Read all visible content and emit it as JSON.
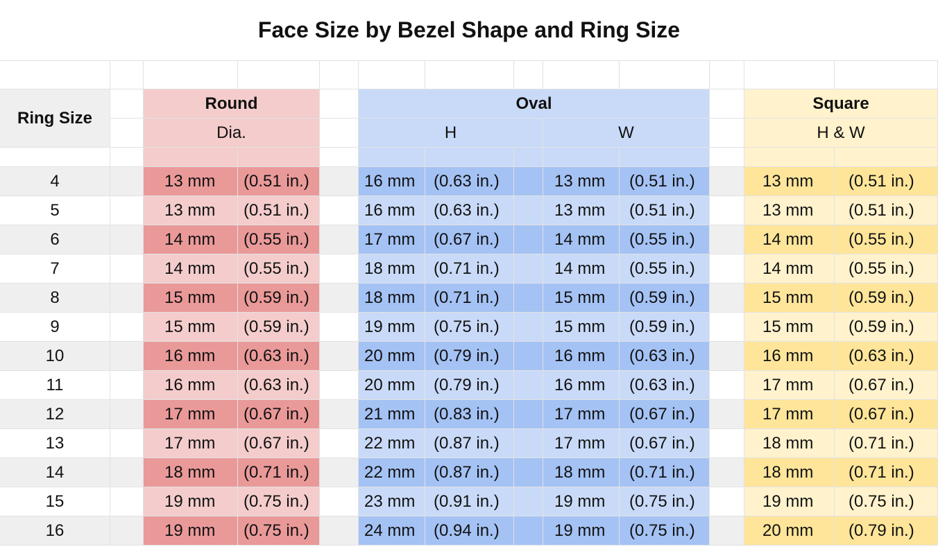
{
  "title": "Face Size by Bezel Shape and Ring Size",
  "headers": {
    "ring_size": "Ring Size",
    "round": "Round",
    "round_sub": "Dia.",
    "oval": "Oval",
    "oval_h": "H",
    "oval_w": "W",
    "square": "Square",
    "square_sub": "H & W"
  },
  "colors": {
    "round_header": "#f4cccc",
    "round_dark": "#ea9999",
    "round_light": "#f4cccc",
    "oval_header": "#c9daf8",
    "oval_dark": "#a4c2f4",
    "oval_light": "#c9daf8",
    "square_header": "#fff2cc",
    "square_dark": "#ffe599",
    "square_light": "#fff2cc",
    "ring_header": "#efefef",
    "stripe": "#efefef"
  },
  "rows": [
    {
      "ring": "4",
      "round_mm": "13 mm",
      "round_in": "(0.51 in.)",
      "oval_h_mm": "16 mm",
      "oval_h_in": "(0.63 in.)",
      "oval_w_mm": "13 mm",
      "oval_w_in": "(0.51 in.)",
      "sq_mm": "13 mm",
      "sq_in": "(0.51 in.)"
    },
    {
      "ring": "5",
      "round_mm": "13 mm",
      "round_in": "(0.51 in.)",
      "oval_h_mm": "16 mm",
      "oval_h_in": "(0.63 in.)",
      "oval_w_mm": "13 mm",
      "oval_w_in": "(0.51 in.)",
      "sq_mm": "13 mm",
      "sq_in": "(0.51 in.)"
    },
    {
      "ring": "6",
      "round_mm": "14 mm",
      "round_in": "(0.55 in.)",
      "oval_h_mm": "17 mm",
      "oval_h_in": "(0.67 in.)",
      "oval_w_mm": "14 mm",
      "oval_w_in": "(0.55 in.)",
      "sq_mm": "14 mm",
      "sq_in": "(0.55 in.)"
    },
    {
      "ring": "7",
      "round_mm": "14 mm",
      "round_in": "(0.55 in.)",
      "oval_h_mm": "18 mm",
      "oval_h_in": "(0.71 in.)",
      "oval_w_mm": "14 mm",
      "oval_w_in": "(0.55 in.)",
      "sq_mm": "14 mm",
      "sq_in": "(0.55 in.)"
    },
    {
      "ring": "8",
      "round_mm": "15 mm",
      "round_in": "(0.59 in.)",
      "oval_h_mm": "18 mm",
      "oval_h_in": "(0.71 in.)",
      "oval_w_mm": "15 mm",
      "oval_w_in": "(0.59 in.)",
      "sq_mm": "15 mm",
      "sq_in": "(0.59 in.)"
    },
    {
      "ring": "9",
      "round_mm": "15 mm",
      "round_in": "(0.59 in.)",
      "oval_h_mm": "19 mm",
      "oval_h_in": "(0.75 in.)",
      "oval_w_mm": "15 mm",
      "oval_w_in": "(0.59 in.)",
      "sq_mm": "15 mm",
      "sq_in": "(0.59 in.)"
    },
    {
      "ring": "10",
      "round_mm": "16 mm",
      "round_in": "(0.63 in.)",
      "oval_h_mm": "20 mm",
      "oval_h_in": "(0.79 in.)",
      "oval_w_mm": "16 mm",
      "oval_w_in": "(0.63 in.)",
      "sq_mm": "16 mm",
      "sq_in": "(0.63 in.)"
    },
    {
      "ring": "11",
      "round_mm": "16 mm",
      "round_in": "(0.63 in.)",
      "oval_h_mm": "20 mm",
      "oval_h_in": "(0.79 in.)",
      "oval_w_mm": "16 mm",
      "oval_w_in": "(0.63 in.)",
      "sq_mm": "17 mm",
      "sq_in": "(0.67 in.)"
    },
    {
      "ring": "12",
      "round_mm": "17 mm",
      "round_in": "(0.67 in.)",
      "oval_h_mm": "21 mm",
      "oval_h_in": "(0.83 in.)",
      "oval_w_mm": "17 mm",
      "oval_w_in": "(0.67 in.)",
      "sq_mm": "17 mm",
      "sq_in": "(0.67 in.)"
    },
    {
      "ring": "13",
      "round_mm": "17 mm",
      "round_in": "(0.67 in.)",
      "oval_h_mm": "22 mm",
      "oval_h_in": "(0.87 in.)",
      "oval_w_mm": "17 mm",
      "oval_w_in": "(0.67 in.)",
      "sq_mm": "18 mm",
      "sq_in": "(0.71 in.)"
    },
    {
      "ring": "14",
      "round_mm": "18 mm",
      "round_in": "(0.71 in.)",
      "oval_h_mm": "22 mm",
      "oval_h_in": "(0.87 in.)",
      "oval_w_mm": "18 mm",
      "oval_w_in": "(0.71 in.)",
      "sq_mm": "18 mm",
      "sq_in": "(0.71 in.)"
    },
    {
      "ring": "15",
      "round_mm": "19 mm",
      "round_in": "(0.75 in.)",
      "oval_h_mm": "23 mm",
      "oval_h_in": "(0.91 in.)",
      "oval_w_mm": "19 mm",
      "oval_w_in": "(0.75 in.)",
      "sq_mm": "19 mm",
      "sq_in": "(0.75 in.)"
    },
    {
      "ring": "16",
      "round_mm": "19 mm",
      "round_in": "(0.75 in.)",
      "oval_h_mm": "24 mm",
      "oval_h_in": "(0.94 in.)",
      "oval_w_mm": "19 mm",
      "oval_w_in": "(0.75 in.)",
      "sq_mm": "20 mm",
      "sq_in": "(0.79 in.)"
    }
  ]
}
